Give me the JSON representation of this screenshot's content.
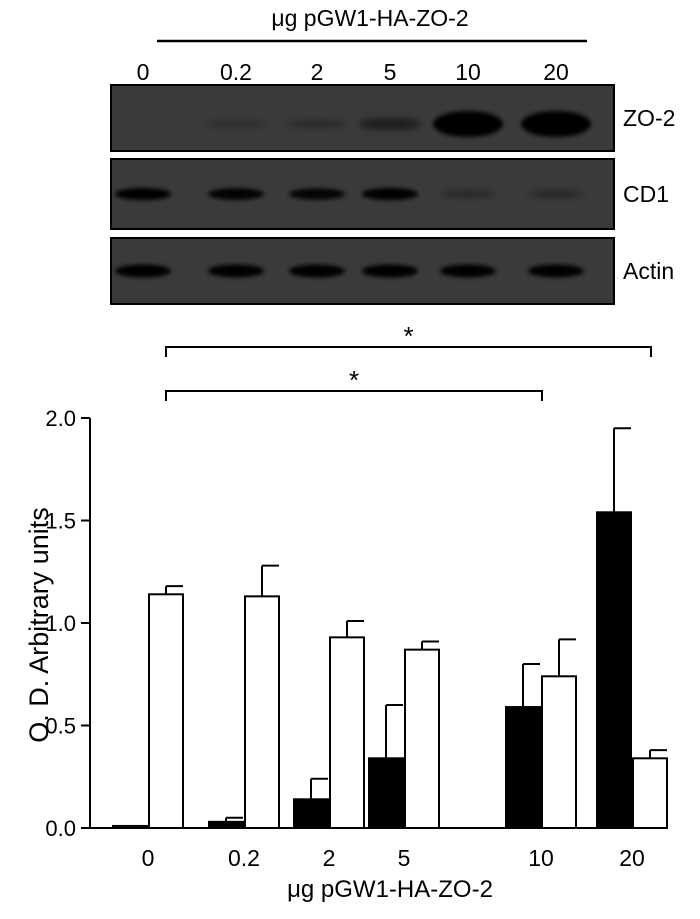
{
  "blot": {
    "header_label": "μg pGW1-HA-ZO-2",
    "lane_labels": [
      "0",
      "0.2",
      "2",
      "5",
      "10",
      "20"
    ],
    "rows": [
      {
        "label": "ZO-2",
        "intensity": [
          0,
          0.02,
          0.08,
          0.3,
          1.0,
          1.0
        ]
      },
      {
        "label": "CD1",
        "intensity": [
          0.9,
          0.85,
          0.8,
          0.9,
          0.15,
          0.18
        ]
      },
      {
        "label": "Actin",
        "intensity": [
          1.0,
          1.0,
          1.0,
          1.0,
          1.0,
          1.0
        ]
      }
    ]
  },
  "chart_data": {
    "type": "bar",
    "categories": [
      "0",
      "0.2",
      "2",
      "5",
      "10",
      "20"
    ],
    "series": [
      {
        "fill": "#000000",
        "values": [
          0.01,
          0.03,
          0.14,
          0.34,
          0.59,
          1.54
        ],
        "errors": [
          0.0,
          0.02,
          0.1,
          0.26,
          0.21,
          0.41
        ]
      },
      {
        "fill": "#ffffff",
        "values": [
          1.14,
          1.13,
          0.93,
          0.87,
          0.74,
          0.34
        ],
        "errors": [
          0.04,
          0.15,
          0.08,
          0.04,
          0.18,
          0.04
        ]
      }
    ],
    "xlabel": "μg pGW1-HA-ZO-2",
    "ylabel": "O. D. Arbitrary units",
    "ylim": [
      0,
      2.0
    ],
    "yticks": [
      "0.0",
      "0.5",
      "1.0",
      "1.5",
      "2.0"
    ],
    "grid": false,
    "significance": [
      {
        "from": "0",
        "to": "20",
        "label": "*"
      },
      {
        "from": "0",
        "to": "10",
        "label": "*"
      }
    ]
  }
}
